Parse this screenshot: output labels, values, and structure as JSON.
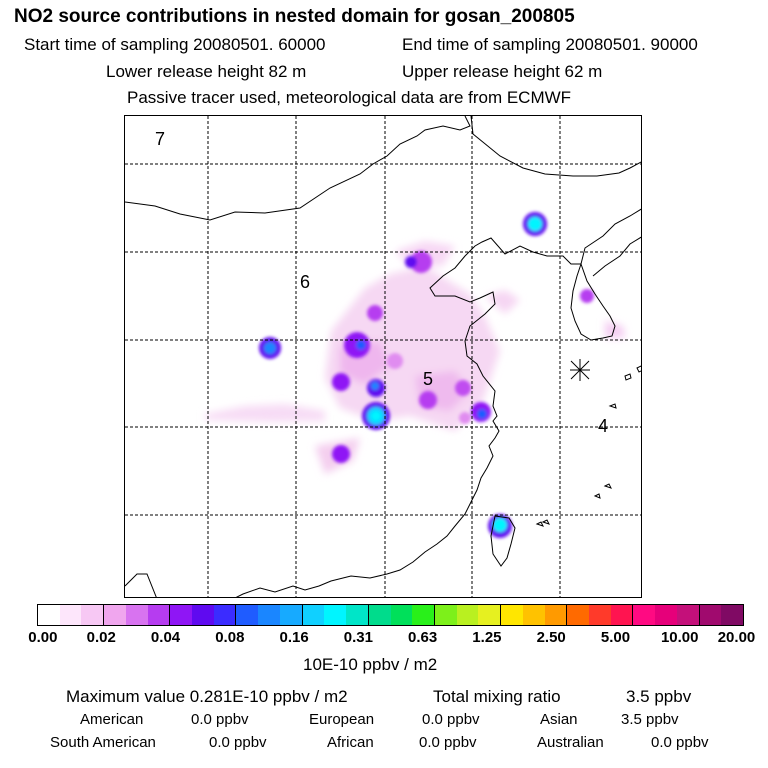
{
  "header": {
    "title": "NO2 source contributions in nested domain for gosan_200805",
    "start_label": "Start time of sampling 20080501. 60000",
    "end_label": "End time of sampling 20080501. 90000",
    "lower_label": "Lower release height   82 m",
    "upper_label": "Upper release height   62 m",
    "note": "Passive tracer used, meteorological data are from ECMWF"
  },
  "map": {
    "region_labels": [
      "7",
      "6",
      "5",
      "4"
    ],
    "receptor_marker": "asterisk-marker"
  },
  "colorbar": {
    "colors": [
      "#ffffff",
      "#fde6fb",
      "#f7c8f4",
      "#f0a6ee",
      "#d873f0",
      "#b63cf0",
      "#8f16f5",
      "#5f0af0",
      "#3b2cff",
      "#1f5cff",
      "#1a86ff",
      "#17aaff",
      "#10d0ff",
      "#00f5ff",
      "#00e5c8",
      "#00dc8c",
      "#00e05a",
      "#29f01a",
      "#7df01a",
      "#b9f020",
      "#e6f020",
      "#ffe600",
      "#ffc200",
      "#ff9a00",
      "#ff6a00",
      "#ff3a2a",
      "#ff1450",
      "#ff0a82",
      "#e6007a",
      "#c4107a",
      "#a00a6e",
      "#800a64"
    ],
    "ticks": [
      "0.00",
      "0.02",
      "0.04",
      "0.08",
      "0.16",
      "0.31",
      "0.63",
      "1.25",
      "2.50",
      "5.00",
      "10.00",
      "20.00"
    ],
    "unit": "10E-10 ppbv / m2"
  },
  "stats": {
    "max_label": "Maximum value  0.281E-10 ppbv / m2",
    "total_label": "Total mixing ratio",
    "total_value": "3.5 ppbv",
    "sources": [
      {
        "name": "American",
        "value": "0.0 ppbv"
      },
      {
        "name": "European",
        "value": "0.0 ppbv"
      },
      {
        "name": "Asian",
        "value": "3.5 ppbv"
      },
      {
        "name": "South American",
        "value": "0.0 ppbv"
      },
      {
        "name": "African",
        "value": "0.0 ppbv"
      },
      {
        "name": "Australian",
        "value": "0.0 ppbv"
      }
    ]
  }
}
